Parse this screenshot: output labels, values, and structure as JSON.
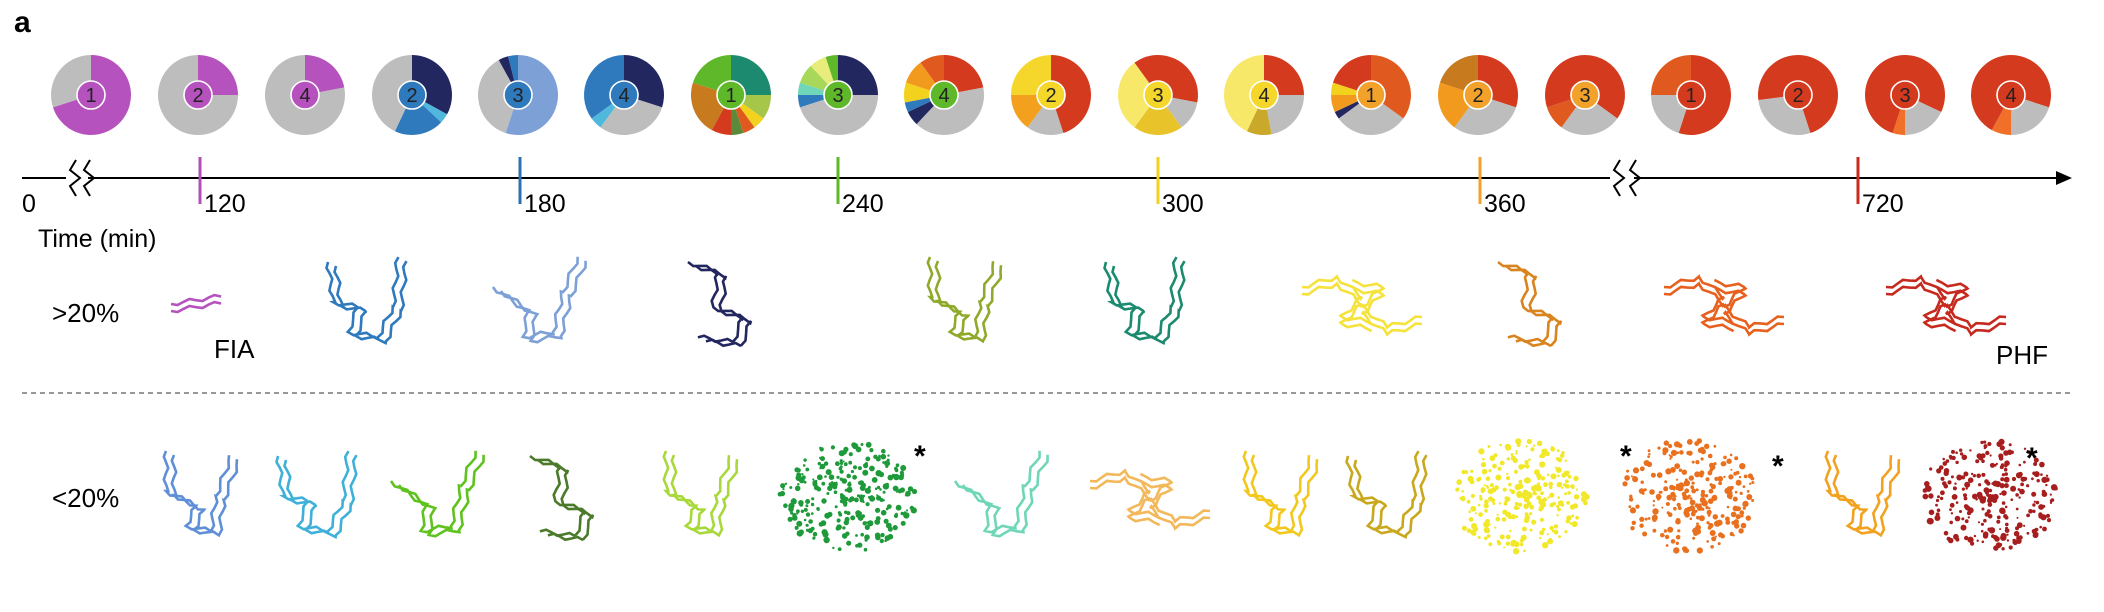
{
  "panel_label": "a",
  "axis": {
    "title": "Time (min)",
    "ticks": [
      {
        "label": "0",
        "color": "#000000"
      },
      {
        "label": "120",
        "color": "#b04fb8"
      },
      {
        "label": "180",
        "color": "#2f6fb0"
      },
      {
        "label": "240",
        "color": "#5fb82a"
      },
      {
        "label": "300",
        "color": "#f2d21c"
      },
      {
        "label": "360",
        "color": "#f2a22a"
      },
      {
        "label": "720",
        "color": "#cc2a1e"
      }
    ]
  },
  "pie_groups": [
    {
      "time": "120",
      "pies": [
        {
          "label": "1",
          "badge": "#b652be",
          "slices": [
            {
              "color": "#b652be",
              "frac": 0.7
            },
            {
              "color": "#bdbdbd",
              "frac": 0.3
            }
          ]
        },
        {
          "label": "2",
          "badge": "#b652be",
          "slices": [
            {
              "color": "#b652be",
              "frac": 0.25
            },
            {
              "color": "#bdbdbd",
              "frac": 0.75
            }
          ]
        },
        {
          "label": "4",
          "badge": "#b652be",
          "slices": [
            {
              "color": "#b652be",
              "frac": 0.22
            },
            {
              "color": "#bdbdbd",
              "frac": 0.78
            }
          ]
        }
      ]
    },
    {
      "time": "180",
      "pies": [
        {
          "label": "2",
          "badge": "#2f79bd",
          "slices": [
            {
              "color": "#232760",
              "frac": 0.33
            },
            {
              "color": "#4fb8dc",
              "frac": 0.04
            },
            {
              "color": "#2f79bd",
              "frac": 0.2
            },
            {
              "color": "#bdbdbd",
              "frac": 0.43
            }
          ]
        },
        {
          "label": "3",
          "badge": "#2f79bd",
          "slices": [
            {
              "color": "#7da0d6",
              "frac": 0.55
            },
            {
              "color": "#bdbdbd",
              "frac": 0.37
            },
            {
              "color": "#232760",
              "frac": 0.04
            },
            {
              "color": "#2f79bd",
              "frac": 0.04
            }
          ]
        },
        {
          "label": "4",
          "badge": "#2f79bd",
          "slices": [
            {
              "color": "#232760",
              "frac": 0.3
            },
            {
              "color": "#bdbdbd",
              "frac": 0.3
            },
            {
              "color": "#4fb8dc",
              "frac": 0.05
            },
            {
              "color": "#2f79bd",
              "frac": 0.35
            }
          ]
        }
      ]
    },
    {
      "time": "240",
      "pies": [
        {
          "label": "1",
          "badge": "#5fb82a",
          "slices": [
            {
              "color": "#1b8a6e",
              "frac": 0.25
            },
            {
              "color": "#a6c64a",
              "frac": 0.1
            },
            {
              "color": "#f2d21c",
              "frac": 0.05
            },
            {
              "color": "#e05a20",
              "frac": 0.05
            },
            {
              "color": "#5a8a3a",
              "frac": 0.05
            },
            {
              "color": "#d43a1e",
              "frac": 0.08
            },
            {
              "color": "#c77a1e",
              "frac": 0.22
            },
            {
              "color": "#5fb82a",
              "frac": 0.2
            }
          ]
        },
        {
          "label": "3",
          "badge": "#5fb82a",
          "slices": [
            {
              "color": "#232760",
              "frac": 0.25
            },
            {
              "color": "#bdbdbd",
              "frac": 0.45
            },
            {
              "color": "#2f79bd",
              "frac": 0.05
            },
            {
              "color": "#6fd6b8",
              "frac": 0.05
            },
            {
              "color": "#a8d85a",
              "frac": 0.08
            },
            {
              "color": "#e8ec7a",
              "frac": 0.07
            },
            {
              "color": "#5fb82a",
              "frac": 0.05
            }
          ]
        },
        {
          "label": "4",
          "badge": "#5fb82a",
          "slices": [
            {
              "color": "#d43a1e",
              "frac": 0.22
            },
            {
              "color": "#bdbdbd",
              "frac": 0.4
            },
            {
              "color": "#232760",
              "frac": 0.06
            },
            {
              "color": "#2f79bd",
              "frac": 0.04
            },
            {
              "color": "#f2d21c",
              "frac": 0.08
            },
            {
              "color": "#f29a1e",
              "frac": 0.1
            },
            {
              "color": "#e05a20",
              "frac": 0.1
            }
          ]
        }
      ]
    },
    {
      "time": "300",
      "pies": [
        {
          "label": "2",
          "badge": "#f5d62a",
          "slices": [
            {
              "color": "#d43a1e",
              "frac": 0.45
            },
            {
              "color": "#bdbdbd",
              "frac": 0.15
            },
            {
              "color": "#f2a01e",
              "frac": 0.15
            },
            {
              "color": "#f5d62a",
              "frac": 0.25
            }
          ]
        },
        {
          "label": "3",
          "badge": "#f5d62a",
          "slices": [
            {
              "color": "#d43a1e",
              "frac": 0.28
            },
            {
              "color": "#bdbdbd",
              "frac": 0.12
            },
            {
              "color": "#e8c42a",
              "frac": 0.2
            },
            {
              "color": "#f7e86a",
              "frac": 0.3
            },
            {
              "color": "#d43a1e",
              "frac": 0.1
            }
          ]
        },
        {
          "label": "4",
          "badge": "#f5d62a",
          "slices": [
            {
              "color": "#d43a1e",
              "frac": 0.25
            },
            {
              "color": "#bdbdbd",
              "frac": 0.22
            },
            {
              "color": "#c9a82a",
              "frac": 0.1
            },
            {
              "color": "#f7e86a",
              "frac": 0.43
            }
          ]
        }
      ]
    },
    {
      "time": "360",
      "pies": [
        {
          "label": "1",
          "badge": "#f2a22a",
          "slices": [
            {
              "color": "#e05a20",
              "frac": 0.35
            },
            {
              "color": "#bdbdbd",
              "frac": 0.3
            },
            {
              "color": "#232760",
              "frac": 0.03
            },
            {
              "color": "#f29a1e",
              "frac": 0.07
            },
            {
              "color": "#f2d21c",
              "frac": 0.05
            },
            {
              "color": "#d43a1e",
              "frac": 0.2
            }
          ]
        },
        {
          "label": "2",
          "badge": "#f2a22a",
          "slices": [
            {
              "color": "#d43a1e",
              "frac": 0.3
            },
            {
              "color": "#bdbdbd",
              "frac": 0.3
            },
            {
              "color": "#f29a1e",
              "frac": 0.2
            },
            {
              "color": "#c77a1e",
              "frac": 0.2
            }
          ]
        },
        {
          "label": "3",
          "badge": "#f2a22a",
          "slices": [
            {
              "color": "#d43a1e",
              "frac": 0.35
            },
            {
              "color": "#bdbdbd",
              "frac": 0.25
            },
            {
              "color": "#e05a20",
              "frac": 0.1
            },
            {
              "color": "#d43a1e",
              "frac": 0.3
            }
          ]
        }
      ]
    },
    {
      "time": "720",
      "pies": [
        {
          "label": "1",
          "badge": "#d43a1e",
          "slices": [
            {
              "color": "#d43a1e",
              "frac": 0.55
            },
            {
              "color": "#bdbdbd",
              "frac": 0.2
            },
            {
              "color": "#e05a20",
              "frac": 0.25
            }
          ]
        },
        {
          "label": "2",
          "badge": "#d43a1e",
          "slices": [
            {
              "color": "#d43a1e",
              "frac": 0.45
            },
            {
              "color": "#bdbdbd",
              "frac": 0.28
            },
            {
              "color": "#d43a1e",
              "frac": 0.27
            }
          ]
        },
        {
          "label": "3",
          "badge": "#d43a1e",
          "slices": [
            {
              "color": "#d43a1e",
              "frac": 0.32
            },
            {
              "color": "#bdbdbd",
              "frac": 0.18
            },
            {
              "color": "#f0702a",
              "frac": 0.05
            },
            {
              "color": "#d43a1e",
              "frac": 0.45
            }
          ]
        },
        {
          "label": "4",
          "badge": "#d43a1e",
          "slices": [
            {
              "color": "#d43a1e",
              "frac": 0.3
            },
            {
              "color": "#bdbdbd",
              "frac": 0.2
            },
            {
              "color": "#f0702a",
              "frac": 0.08
            },
            {
              "color": "#d43a1e",
              "frac": 0.42
            }
          ]
        }
      ]
    }
  ],
  "rows": {
    "upper": {
      "label": ">20%",
      "first_label": "FIA",
      "last_label": "PHF"
    },
    "lower": {
      "label": "<20%"
    }
  },
  "upper_structures": [
    {
      "color": "#b652be",
      "style": "short"
    },
    {
      "color": "#2f79bd",
      "style": "fold"
    },
    {
      "color": "#7da0d6",
      "style": "fold"
    },
    {
      "color": "#232760",
      "style": "fold"
    },
    {
      "color": "#8faa2a",
      "style": "fold"
    },
    {
      "color": "#1b8a6e",
      "style": "fold"
    },
    {
      "color": "#f5e23a",
      "style": "double"
    },
    {
      "color": "#d9841e",
      "style": "fold"
    },
    {
      "color": "#e8601e",
      "style": "double"
    },
    {
      "color": "#c62a1e",
      "style": "double"
    }
  ],
  "lower_structures": [
    {
      "color": "#5f8fd6",
      "style": "fold"
    },
    {
      "color": "#3fb0d8",
      "style": "fold"
    },
    {
      "color": "#5fc21e",
      "style": "fold"
    },
    {
      "color": "#4a7a2a",
      "style": "fold"
    },
    {
      "color": "#a8d83a",
      "style": "fold"
    },
    {
      "color": "#1e9a3a",
      "style": "dots",
      "star": "*"
    },
    {
      "color": "#6fd6b8",
      "style": "fold"
    },
    {
      "color": "#f2b85a",
      "style": "double"
    },
    {
      "color": "#f2c81e",
      "style": "fold"
    },
    {
      "color": "#c9a81e",
      "style": "fold"
    },
    {
      "color": "#f2e82a",
      "style": "dots",
      "star": "*"
    },
    {
      "color": "#e8701e",
      "style": "dots",
      "star": "*"
    },
    {
      "color": "#f2a21e",
      "style": "fold"
    },
    {
      "color": "#a61e1e",
      "style": "dots",
      "star": "*"
    }
  ]
}
